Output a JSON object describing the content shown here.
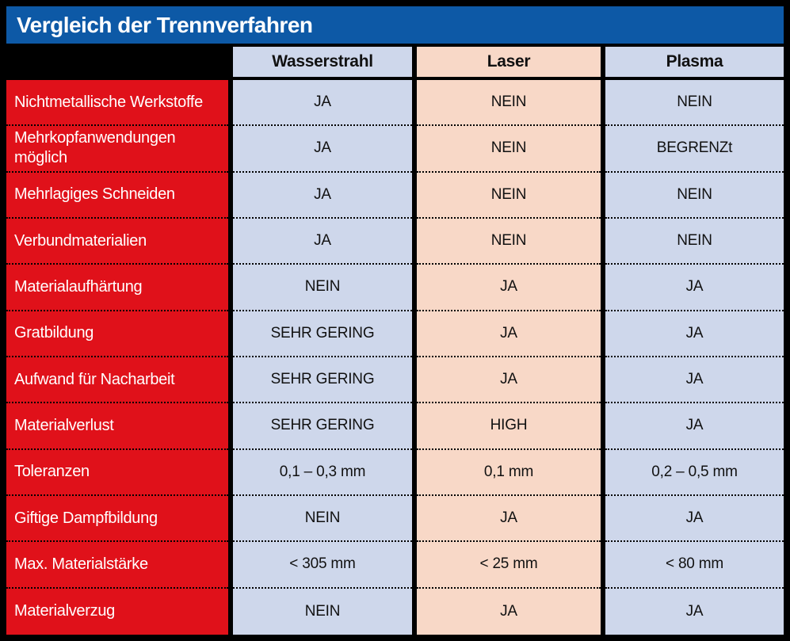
{
  "title": "Vergleich der Trennverfahren",
  "columns": [
    "Wasserstrahl",
    "Laser",
    "Plasma"
  ],
  "rows": [
    {
      "label": "Nichtmetallische Werkstoffe",
      "values": [
        "JA",
        "NEIN",
        "NEIN"
      ]
    },
    {
      "label": "Mehrkopfanwendungen möglich",
      "values": [
        "JA",
        "NEIN",
        "BEGRENZt"
      ]
    },
    {
      "label": "Mehrlagiges Schneiden",
      "values": [
        "JA",
        "NEIN",
        "NEIN"
      ]
    },
    {
      "label": "Verbundmaterialien",
      "values": [
        "JA",
        "NEIN",
        "NEIN"
      ]
    },
    {
      "label": "Materialaufhärtung",
      "values": [
        "NEIN",
        "JA",
        "JA"
      ]
    },
    {
      "label": "Gratbildung",
      "values": [
        "SEHR GERING",
        "JA",
        "JA"
      ]
    },
    {
      "label": "Aufwand für Nacharbeit",
      "values": [
        "SEHR GERING",
        "JA",
        "JA"
      ]
    },
    {
      "label": "Materialverlust",
      "values": [
        "SEHR GERING",
        "HIGH",
        "JA"
      ]
    },
    {
      "label": "Toleranzen",
      "values": [
        "0,1 – 0,3 mm",
        "0,1 mm",
        "0,2 – 0,5 mm"
      ]
    },
    {
      "label": "Giftige Dampfbildung",
      "values": [
        "NEIN",
        "JA",
        "JA"
      ]
    },
    {
      "label": "Max. Materialstärke",
      "values": [
        "< 305 mm",
        "< 25 mm",
        "< 80 mm"
      ]
    },
    {
      "label": "Materialverzug",
      "values": [
        "NEIN",
        "JA",
        "JA"
      ]
    }
  ],
  "colors": {
    "title_bg": "#0d59a6",
    "label_column_bg": "#e0111a",
    "blue_column_bg": "#ced7eb",
    "peach_column_bg": "#f8d8c7",
    "border": "#000000",
    "title_text": "#ffffff",
    "label_text": "#ffffff",
    "cell_text": "#111111"
  },
  "chart_data": {
    "type": "table",
    "title": "Vergleich der Trennverfahren",
    "columns": [
      "",
      "Wasserstrahl",
      "Laser",
      "Plasma"
    ],
    "rows": [
      [
        "Nichtmetallische Werkstoffe",
        "JA",
        "NEIN",
        "NEIN"
      ],
      [
        "Mehrkopfanwendungen möglich",
        "JA",
        "NEIN",
        "BEGRENZt"
      ],
      [
        "Mehrlagiges Schneiden",
        "JA",
        "NEIN",
        "NEIN"
      ],
      [
        "Verbundmaterialien",
        "JA",
        "NEIN",
        "NEIN"
      ],
      [
        "Materialaufhärtung",
        "NEIN",
        "JA",
        "JA"
      ],
      [
        "Gratbildung",
        "SEHR GERING",
        "JA",
        "JA"
      ],
      [
        "Aufwand für Nacharbeit",
        "SEHR GERING",
        "JA",
        "JA"
      ],
      [
        "Materialverlust",
        "SEHR GERING",
        "HIGH",
        "JA"
      ],
      [
        "Toleranzen",
        "0,1 – 0,3 mm",
        "0,1 mm",
        "0,2 – 0,5 mm"
      ],
      [
        "Giftige Dampfbildung",
        "NEIN",
        "JA",
        "JA"
      ],
      [
        "Max. Materialstärke",
        "< 305 mm",
        "< 25 mm",
        "< 80 mm"
      ],
      [
        "Materialverzug",
        "NEIN",
        "JA",
        "JA"
      ]
    ],
    "legend_position": "none",
    "grid": "dotted-row-separators"
  }
}
